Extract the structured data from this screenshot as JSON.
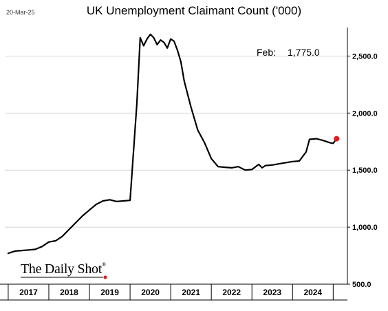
{
  "date_stamp": "20-Mar-25",
  "brand": "The Daily Shot",
  "brand_mark": "®",
  "chart_data": {
    "type": "line",
    "title": "UK Unemployment Claimant Count ('000)",
    "annotation": {
      "label": "Feb:",
      "value": "1,775.0"
    },
    "ylim": [
      500,
      2750
    ],
    "yticks": [
      500,
      1000,
      1500,
      2000,
      2500
    ],
    "ytick_labels": [
      "500.0",
      "1,000.0",
      "1,500.0",
      "2,000.0",
      "2,500.0"
    ],
    "x_categories": [
      "2017",
      "2018",
      "2019",
      "2020",
      "2021",
      "2022",
      "2023",
      "2024"
    ],
    "grid": true,
    "last_point_marker_color": "#e31a1c",
    "line_color": "#000000",
    "series": [
      {
        "x": [
          "2017-01",
          "2017-03",
          "2017-05",
          "2017-07",
          "2017-09",
          "2017-11",
          "2018-01",
          "2018-03",
          "2018-05",
          "2018-07",
          "2018-09",
          "2018-11",
          "2019-01",
          "2019-03",
          "2019-05",
          "2019-07",
          "2019-09",
          "2019-11",
          "2020-01",
          "2020-03",
          "2020-04",
          "2020-05",
          "2020-06",
          "2020-07",
          "2020-08",
          "2020-09",
          "2020-10",
          "2020-11",
          "2020-12",
          "2021-01",
          "2021-02",
          "2021-03",
          "2021-04",
          "2021-05",
          "2021-07",
          "2021-09",
          "2021-11",
          "2022-01",
          "2022-03",
          "2022-05",
          "2022-07",
          "2022-09",
          "2022-11",
          "2023-01",
          "2023-03",
          "2023-04",
          "2023-05",
          "2023-07",
          "2023-09",
          "2023-11",
          "2024-01",
          "2024-03",
          "2024-05",
          "2024-06",
          "2024-08",
          "2024-10",
          "2024-12",
          "2025-01",
          "2025-02"
        ],
        "values": [
          770,
          790,
          795,
          800,
          805,
          830,
          870,
          880,
          920,
          980,
          1040,
          1100,
          1150,
          1200,
          1230,
          1240,
          1225,
          1230,
          1235,
          2080,
          2660,
          2590,
          2650,
          2690,
          2660,
          2600,
          2640,
          2620,
          2570,
          2650,
          2630,
          2550,
          2450,
          2280,
          2050,
          1850,
          1740,
          1600,
          1530,
          1525,
          1520,
          1530,
          1500,
          1505,
          1550,
          1520,
          1540,
          1545,
          1555,
          1565,
          1575,
          1580,
          1660,
          1770,
          1775,
          1760,
          1740,
          1735,
          1775
        ]
      }
    ]
  }
}
